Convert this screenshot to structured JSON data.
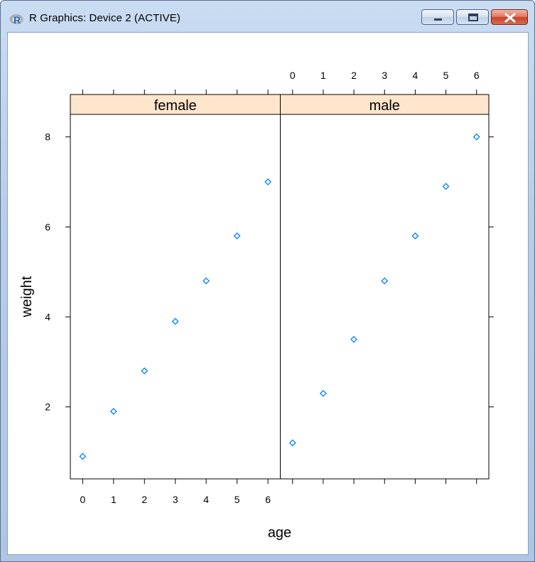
{
  "window": {
    "title": "R Graphics: Device 2 (ACTIVE)",
    "app_icon": "r-logo-icon",
    "controls": [
      "minimize-icon",
      "maximize-icon",
      "close-icon"
    ],
    "colors": {
      "strip_fill": "#ffe5cc",
      "point_color": "#0080ff",
      "panel_border": "#000000"
    }
  },
  "chart_data": {
    "type": "scatter",
    "xlabel": "age",
    "ylabel": "weight",
    "xlim": [
      -0.4,
      6.4
    ],
    "ylim": [
      0.4,
      8.5
    ],
    "x_ticks": [
      0,
      1,
      2,
      3,
      4,
      5,
      6
    ],
    "y_ticks": [
      2,
      4,
      6,
      8
    ],
    "panels": [
      {
        "name": "female",
        "x": [
          0,
          1,
          2,
          3,
          4,
          5,
          6
        ],
        "y": [
          0.9,
          1.9,
          2.8,
          3.9,
          4.8,
          5.8,
          7.0
        ]
      },
      {
        "name": "male",
        "x": [
          0,
          1,
          2,
          3,
          4,
          5,
          6
        ],
        "y": [
          1.2,
          2.3,
          3.5,
          4.8,
          5.8,
          6.9,
          8.0
        ]
      }
    ]
  }
}
